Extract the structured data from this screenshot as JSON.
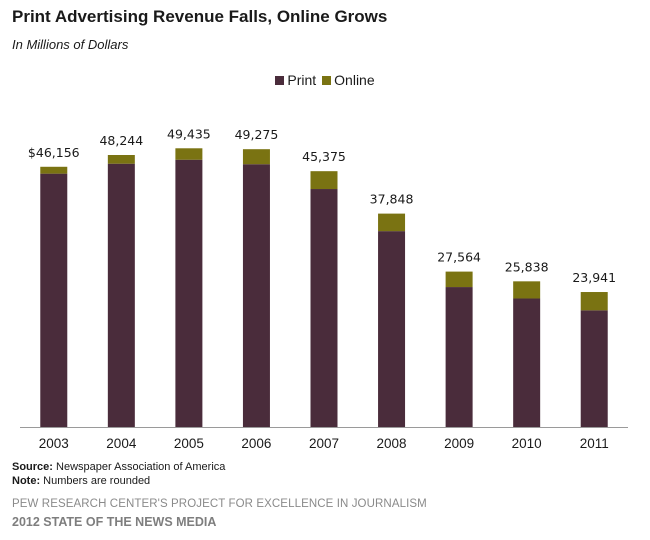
{
  "title": "Print Advertising Revenue Falls, Online Grows",
  "subtitle": "In Millions of Dollars",
  "legend": {
    "print": "Print",
    "online": "Online"
  },
  "colors": {
    "print": "#4a2c3b",
    "online": "#7a7312"
  },
  "footnotes": {
    "source_label": "Source:",
    "source_text": "Newspaper Association of America",
    "note_label": "Note:",
    "note_text": "Numbers are rounded"
  },
  "credits": {
    "line1": "PEW RESEARCH CENTER'S PROJECT FOR EXCELLENCE IN JOURNALISM",
    "line2": "2012 STATE OF THE NEWS MEDIA"
  },
  "chart_data": {
    "type": "bar",
    "stacked": true,
    "categories": [
      "2003",
      "2004",
      "2005",
      "2006",
      "2007",
      "2008",
      "2009",
      "2010",
      "2011"
    ],
    "series": [
      {
        "name": "Print",
        "values": [
          44939,
          46703,
          47408,
          46611,
          42209,
          34740,
          24821,
          22795,
          20692
        ]
      },
      {
        "name": "Online",
        "values": [
          1216,
          1541,
          2027,
          2664,
          3166,
          3109,
          2743,
          3042,
          3249
        ]
      }
    ],
    "total_labels": [
      "$46,156",
      "48,244",
      "49,435",
      "49,275",
      "45,375",
      "37,848",
      "27,564",
      "25,838",
      "23,941"
    ],
    "ylim": [
      0,
      58000
    ],
    "legend_position": "top-center",
    "grid": false
  }
}
